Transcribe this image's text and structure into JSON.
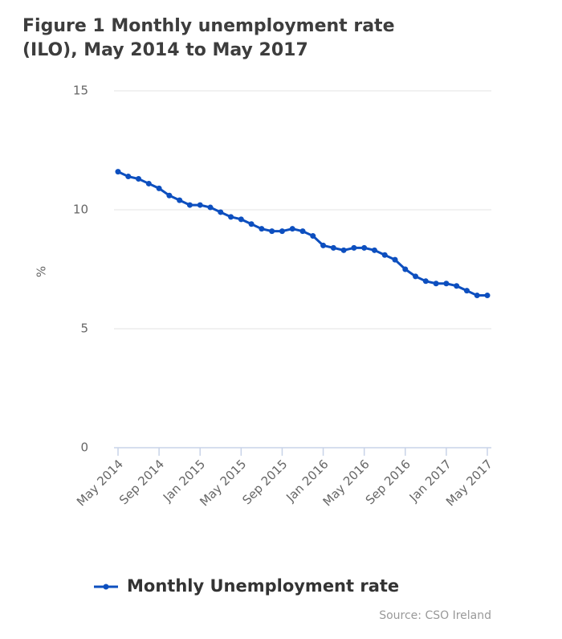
{
  "chart_data": {
    "type": "line",
    "title": "Figure 1 Monthly unemployment rate (ILO), May 2014 to May 2017",
    "y_label": "%",
    "source": "Source: CSO Ireland",
    "categories": [
      "May 2014",
      null,
      null,
      null,
      "Sep 2014",
      null,
      null,
      null,
      "Jan 2015",
      null,
      null,
      null,
      "May 2015",
      null,
      null,
      null,
      "Sep 2015",
      null,
      null,
      null,
      "Jan 2016",
      null,
      null,
      null,
      "May 2016",
      null,
      null,
      null,
      "Sep 2016",
      null,
      null,
      null,
      "Jan 2017",
      null,
      null,
      null,
      "May 2017"
    ],
    "series": [
      {
        "name": "Monthly Unemployment rate",
        "color": "#0d4fbf",
        "values": [
          11.6,
          11.4,
          11.3,
          11.1,
          10.9,
          10.6,
          10.4,
          10.2,
          10.2,
          10.1,
          9.9,
          9.7,
          9.6,
          9.4,
          9.2,
          9.1,
          9.1,
          9.2,
          9.1,
          8.9,
          8.5,
          8.4,
          8.3,
          8.4,
          8.4,
          8.3,
          8.1,
          7.9,
          7.5,
          7.2,
          7.0,
          6.9,
          6.9,
          6.8,
          6.6,
          6.4,
          6.4
        ]
      }
    ],
    "ylim": [
      0,
      15
    ],
    "yticks": [
      0,
      5,
      10,
      15
    ],
    "grid": true
  }
}
